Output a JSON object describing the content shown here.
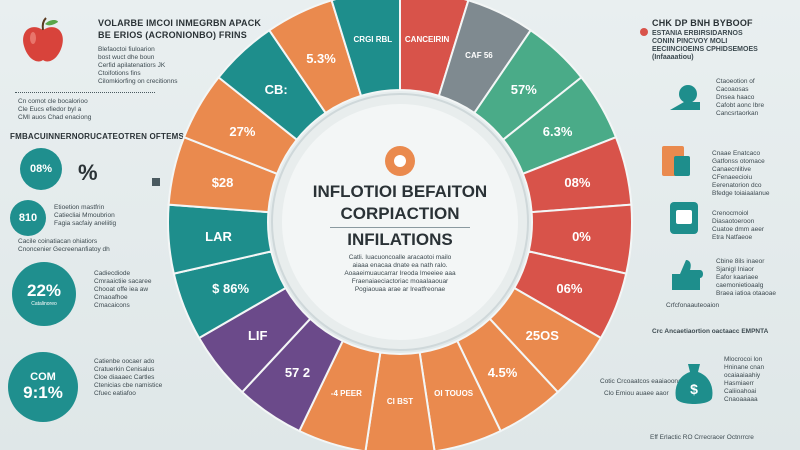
{
  "left": {
    "top_title": "VOLARBE IMCOI INMEGRBN APACK",
    "top_sub": "BE ERIOS (ACRONIONBO) FRINS",
    "top_lines": [
      "Blefaoctoi fiuloarion",
      "bost wuct dhe boun",
      "Cerfid apilatenatiors JK",
      "Ctoifotions fins",
      "Cilomkiorfing on crecitionns"
    ],
    "mid_lines": [
      "Cn comot cle bocalorioo",
      "Cle Eucs efiedor byl a",
      "CMI auos Chad enaciong"
    ],
    "band_title": "FMBACUINNERNORUCATEOTREN OFTEMS",
    "pct1": "08%",
    "pct1b": "%",
    "pct2": "810",
    "pct2_lines": [
      "Etioetion mastfrin",
      "Catiecliai Mmoubrion",
      "Fagia sacfaiy aneliitig"
    ],
    "bottom_lines": [
      "Cacile coinatiacan ohiatiors",
      "Cnoncenier Gecreenanfiatoy dh"
    ],
    "big1": "22%",
    "big1_sub": "Catalinoreo",
    "big1_lines": [
      "Cadiecdiode",
      "Cmraaictiie sacaree",
      "Chooat offe iea aw",
      "Cmaoafhoe",
      "Cmacaicons"
    ],
    "big2_top": "COM",
    "big2": "9:1%",
    "big2_lines": [
      "Catienbe oocaer ado",
      "Cratuerkin Cenisalus",
      "Cloe diaaaec Cartles",
      "Ctenicias cbe namistice",
      "Cfuec eatiafoo"
    ]
  },
  "right": {
    "top_title": "CHK DP BNH BYBOOF",
    "top_lines": [
      "ESTANIA ERBIRSIDARNOS",
      "CONIN PINCVOY MOLI",
      "EECIINCIOEINS CPHIDSEMOES",
      "(Infaaaatiou)"
    ],
    "r1_lines": [
      "Ctaoeotion of",
      "Cacoaosas",
      "Dnsea haaco",
      "Cafobt aonc Ibre",
      "Cancsrtaorkan"
    ],
    "r2_lines": [
      "Cnaae Enatcaco",
      "Gatfonss otomace",
      "Canaecnlitive",
      "CFenaeecioiu",
      "Eerenatorion dco",
      "Bfedge toiaiaalanue"
    ],
    "r3_lines": [
      "Crenocmoiol",
      "Diasaotoeroon",
      "Cuatoe dmm aeer",
      "Etra Natfaeoe"
    ],
    "r4_lines": [
      "Cbine 8ils inaeor",
      "SjanigI Iniaor",
      "Eafor kaariaee",
      "caemonietioaalg",
      "Braea iatioa otaaoae"
    ],
    "r4_caption": "Crfcfonaauteoaion",
    "r5_lines": [
      "Mlocrocoi lon",
      "Hninane cnan",
      "ocaiaaiaahiy",
      "Hasmiaerr",
      "Caliioahoai",
      "Cnaoaaaaa"
    ],
    "r5_caption": "Crc Ancaetiaortion oactaacc EMPNTA",
    "bottom_credit": "Eff Erlactic RO Crrecracer Octnrrcre",
    "mid_caption": "Cotic Crcoaatcos eaaiaoonaccon",
    "mid_caption2": "Clo Emiou auaee aaor"
  },
  "ring": {
    "center_title1": "INFLOTIOI BEFAITON",
    "center_title2": "CORPIACTION",
    "center_title3": "INFILATIONS",
    "center_body": [
      "Catli. Iuacuoncoalle aracaotoi mailo",
      "aiaaa enacaa dnate ea nath ralo.",
      "Aoaaeimuaucarrar Ireoda Imeeiee aaa",
      "Fraenaiaeciactoriac moaalaaouar",
      "Pogiaouaa arae ar Ireatfreonae"
    ],
    "seg_labels": [
      "CANCEIRIN",
      "CAF 56",
      "57%",
      "6.3%",
      "08%",
      "0%",
      "06%",
      "25OS",
      "4.5%",
      "OI TOUOS",
      "CI BST",
      "-4 PEER",
      "57 2",
      "LIF",
      "$ 86%",
      "LAR",
      "$28",
      "27%",
      "CB:",
      "5.3%",
      "CRGI RBL"
    ],
    "colors": {
      "teal": "#1e8e8c",
      "orange": "#ea8a4e",
      "red": "#d8534a",
      "purple": "#6b4a8a",
      "green": "#4aab88",
      "gray": "#7f8a90",
      "yellow": "#e9b24a"
    }
  }
}
